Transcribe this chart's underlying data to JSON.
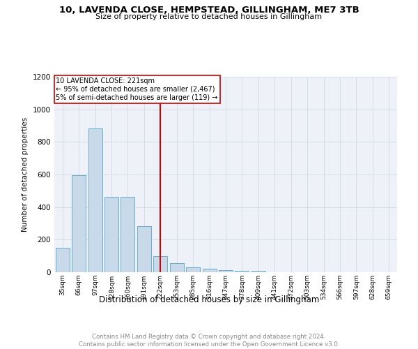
{
  "title": "10, LAVENDA CLOSE, HEMPSTEAD, GILLINGHAM, ME7 3TB",
  "subtitle": "Size of property relative to detached houses in Gillingham",
  "xlabel": "Distribution of detached houses by size in Gillingham",
  "ylabel": "Number of detached properties",
  "categories": [
    "35sqm",
    "66sqm",
    "97sqm",
    "128sqm",
    "160sqm",
    "191sqm",
    "222sqm",
    "253sqm",
    "285sqm",
    "316sqm",
    "347sqm",
    "378sqm",
    "409sqm",
    "441sqm",
    "472sqm",
    "503sqm",
    "534sqm",
    "566sqm",
    "597sqm",
    "628sqm",
    "659sqm"
  ],
  "values": [
    150,
    595,
    885,
    465,
    465,
    285,
    100,
    57,
    32,
    22,
    13,
    10,
    10,
    0,
    0,
    0,
    0,
    0,
    0,
    0,
    0
  ],
  "bar_color": "#c8d9ea",
  "bar_edge_color": "#6aacd0",
  "vline_x": 6,
  "vline_color": "#cc0000",
  "annotation_text": "10 LAVENDA CLOSE: 221sqm\n← 95% of detached houses are smaller (2,467)\n5% of semi-detached houses are larger (119) →",
  "annotation_box_color": "#ffffff",
  "annotation_box_edge": "#cc0000",
  "ylim": [
    0,
    1200
  ],
  "yticks": [
    0,
    200,
    400,
    600,
    800,
    1000,
    1200
  ],
  "footer_text": "Contains HM Land Registry data © Crown copyright and database right 2024.\nContains public sector information licensed under the Open Government Licence v3.0.",
  "grid_color": "#d0d8e8",
  "background_color": "#eef2f8"
}
